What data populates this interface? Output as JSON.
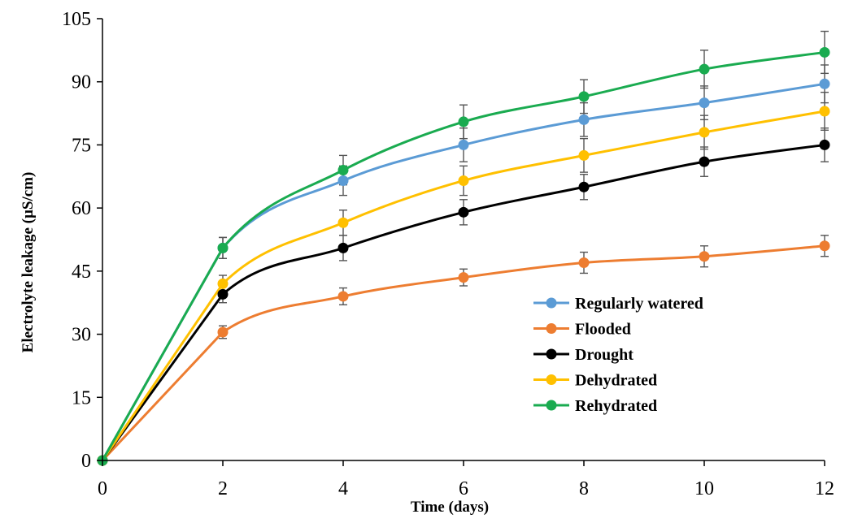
{
  "chart_data": {
    "type": "line",
    "title": "",
    "xlabel": "Time (days)",
    "ylabel": "Electrolyte leakage (µS/cm)",
    "x": [
      0,
      2,
      4,
      6,
      8,
      10,
      12
    ],
    "x_ticks": [
      "0",
      "2",
      "4",
      "6",
      "8",
      "10",
      "12"
    ],
    "y_ticks": [
      "0",
      "15",
      "30",
      "45",
      "60",
      "75",
      "90",
      "105"
    ],
    "xlim": [
      0,
      12
    ],
    "ylim": [
      0,
      105
    ],
    "grid": false,
    "legend_position": "lower-right",
    "series": [
      {
        "name": "Regularly watered",
        "color": "#5b9bd5",
        "values": [
          0,
          50.5,
          66.5,
          75,
          81,
          85,
          89.5
        ],
        "errors": [
          0,
          2.5,
          3.5,
          4,
          4,
          4,
          4.5
        ]
      },
      {
        "name": "Flooded",
        "color": "#ed7d31",
        "values": [
          0,
          30.5,
          39,
          43.5,
          47,
          48.5,
          51
        ],
        "errors": [
          0,
          1.5,
          2,
          2,
          2.5,
          2.5,
          2.5
        ]
      },
      {
        "name": "Drought",
        "color": "#000000",
        "values": [
          0,
          39.5,
          50.5,
          59,
          65,
          71,
          75
        ],
        "errors": [
          0,
          2,
          3,
          3,
          3,
          3.5,
          4
        ]
      },
      {
        "name": "Dehydrated",
        "color": "#ffc000",
        "values": [
          0,
          42,
          56.5,
          66.5,
          72.5,
          78,
          83
        ],
        "errors": [
          0,
          2,
          3,
          3.5,
          4,
          4,
          4.5
        ]
      },
      {
        "name": "Rehydrated",
        "color": "#1aab50",
        "values": [
          0,
          50.5,
          69,
          80.5,
          86.5,
          93,
          97
        ],
        "errors": [
          0,
          2.5,
          3.5,
          4,
          4,
          4.5,
          5
        ]
      }
    ]
  }
}
